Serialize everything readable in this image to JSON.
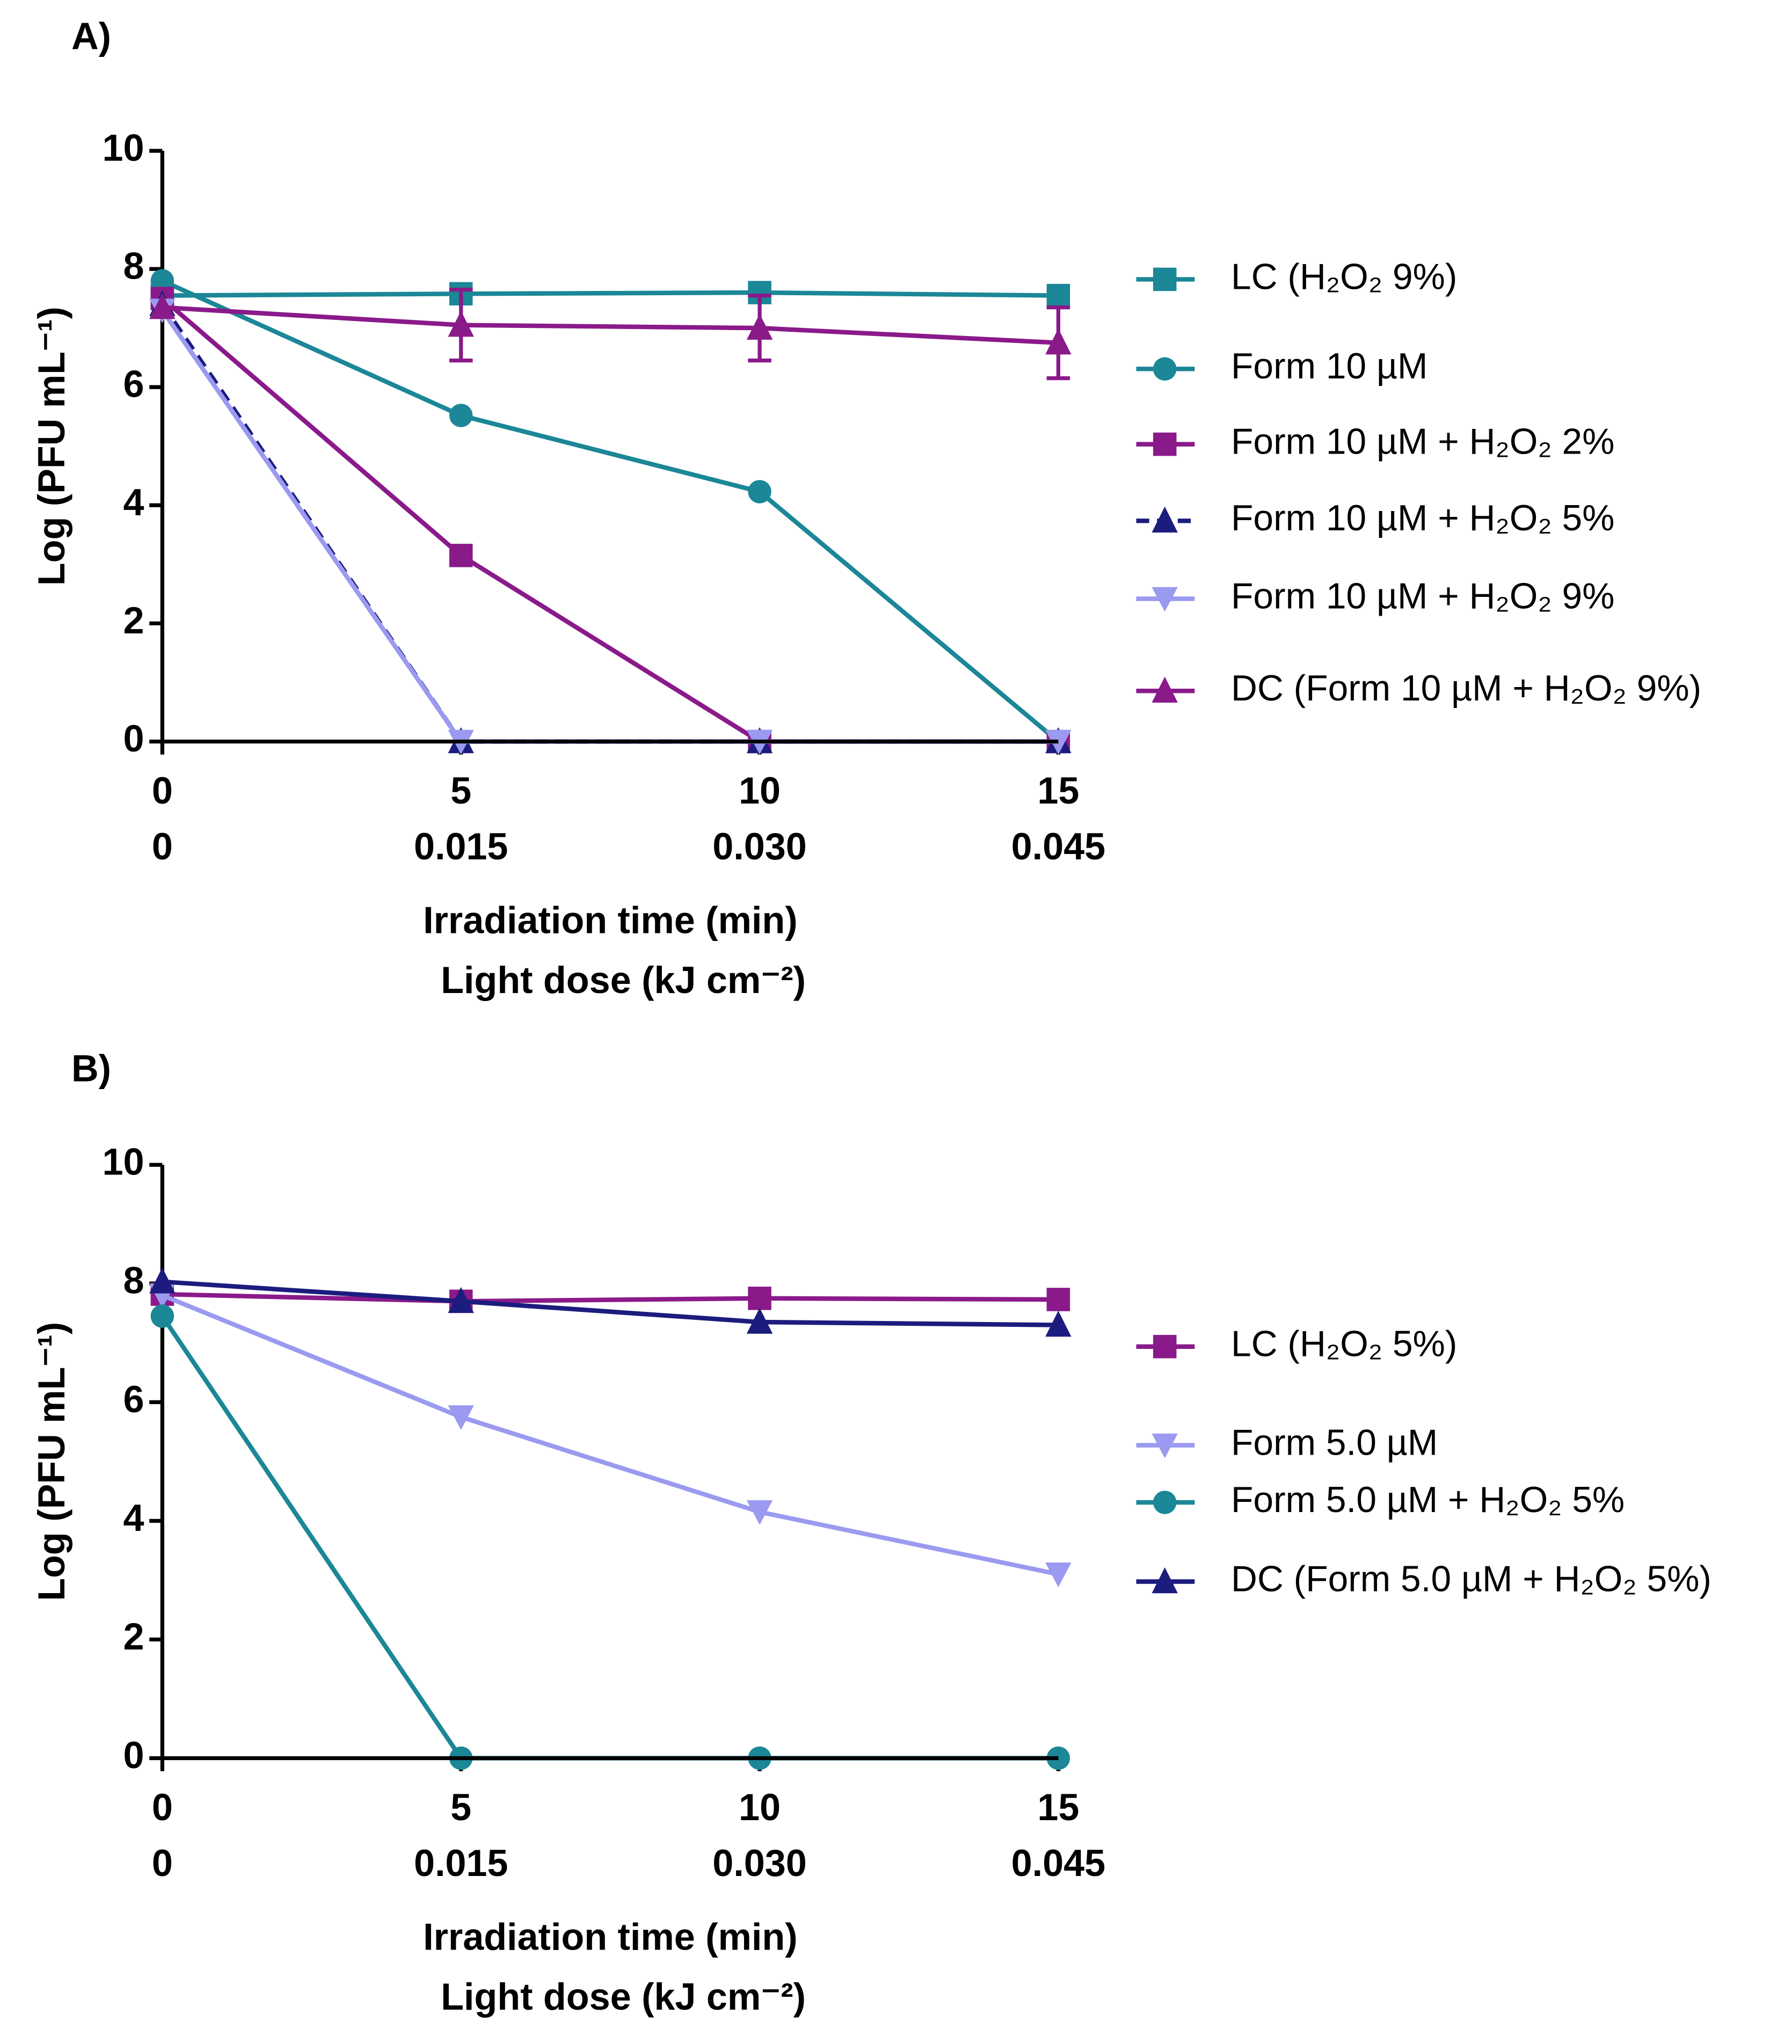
{
  "chart_data": [
    {
      "type": "line",
      "panel_label": "A)",
      "xlabel": "Irradiation time (min)",
      "x2label": "Light dose (kJ cm⁻²)",
      "ylabel": "Log (PFU mL⁻¹)",
      "x": [
        0,
        5,
        10,
        15
      ],
      "xlim": [
        0,
        15
      ],
      "xticks": [
        0,
        5,
        10,
        15
      ],
      "x2lim": [
        0,
        0.045
      ],
      "x2ticks": [
        0,
        {
          "value": 0.015,
          "label": "0.015"
        },
        {
          "value": 0.03,
          "label": "0.030"
        },
        {
          "value": 0.045,
          "label": "0.045"
        }
      ],
      "ylim": [
        0,
        10
      ],
      "yticks": [
        0,
        2,
        4,
        6,
        8,
        10
      ],
      "legend": "right",
      "series": [
        {
          "name": "LC (H₂O₂ 9%)",
          "color": "#1b8797",
          "marker": "square",
          "values": [
            7.55,
            7.58,
            7.6,
            7.55
          ]
        },
        {
          "name": "Form 10 µM",
          "color": "#1b8797",
          "marker": "circle",
          "values": [
            7.8,
            5.52,
            4.23,
            0
          ]
        },
        {
          "name": "Form 10 µM + H₂O₂ 2%",
          "color": "#8a1a8a",
          "marker": "square",
          "values": [
            7.5,
            3.15,
            0,
            0
          ]
        },
        {
          "name": "Form 10 µM + H₂O₂ 5%",
          "color": "#1c1c7e",
          "marker": "triangle",
          "dashed": true,
          "values": [
            7.4,
            0,
            0,
            0
          ]
        },
        {
          "name": "Form 10 µM + H₂O₂ 9%",
          "color": "#9a9af0",
          "marker": "triangle-down",
          "values": [
            7.3,
            0,
            0,
            0
          ]
        },
        {
          "name": "DC (Form 10 µM + H₂O₂ 9%)",
          "color": "#8a1a8a",
          "marker": "triangle",
          "values": [
            7.35,
            7.05,
            7.0,
            6.75
          ],
          "errors": [
            null,
            0.6,
            0.55,
            0.6
          ]
        }
      ]
    },
    {
      "type": "line",
      "panel_label": "B)",
      "xlabel": "Irradiation time (min)",
      "x2label": "Light dose (kJ cm⁻²)",
      "ylabel": "Log (PFU mL⁻¹)",
      "x": [
        0,
        5,
        10,
        15
      ],
      "xlim": [
        0,
        15
      ],
      "xticks": [
        0,
        5,
        10,
        15
      ],
      "x2lim": [
        0,
        0.045
      ],
      "x2ticks": [
        0,
        {
          "value": 0.015,
          "label": "0.015"
        },
        {
          "value": 0.03,
          "label": "0.030"
        },
        {
          "value": 0.045,
          "label": "0.045"
        }
      ],
      "ylim": [
        0,
        10
      ],
      "yticks": [
        0,
        2,
        4,
        6,
        8,
        10
      ],
      "legend": "right",
      "series": [
        {
          "name": "LC (H₂O₂ 5%)",
          "color": "#8a1a8a",
          "marker": "square",
          "values": [
            7.82,
            7.7,
            7.75,
            7.73
          ]
        },
        {
          "name": "Form 5.0 µM",
          "color": "#9a9af0",
          "marker": "triangle-down",
          "values": [
            7.8,
            5.75,
            4.15,
            3.1
          ]
        },
        {
          "name": "Form 5.0 µM + H₂O₂ 5%",
          "color": "#1b8797",
          "marker": "circle",
          "values": [
            7.45,
            0,
            0,
            0
          ]
        },
        {
          "name": "DC (Form 5.0 µM + H₂O₂ 5%)",
          "color": "#1c1c7e",
          "marker": "triangle",
          "values": [
            8.03,
            7.7,
            7.35,
            7.3
          ]
        }
      ]
    }
  ]
}
